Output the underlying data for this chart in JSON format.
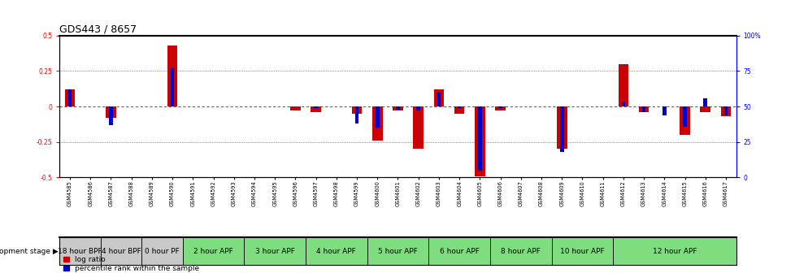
{
  "title": "GDS443 / 8657",
  "samples": [
    "GSM4585",
    "GSM4586",
    "GSM4587",
    "GSM4588",
    "GSM4589",
    "GSM4590",
    "GSM4591",
    "GSM4592",
    "GSM4593",
    "GSM4594",
    "GSM4595",
    "GSM4596",
    "GSM4597",
    "GSM4598",
    "GSM4599",
    "GSM4600",
    "GSM4601",
    "GSM4602",
    "GSM4603",
    "GSM4604",
    "GSM4605",
    "GSM4606",
    "GSM4607",
    "GSM4608",
    "GSM4609",
    "GSM4610",
    "GSM4611",
    "GSM4612",
    "GSM4613",
    "GSM4614",
    "GSM4615",
    "GSM4616",
    "GSM4617"
  ],
  "log_ratio": [
    0.12,
    0.0,
    -0.08,
    0.0,
    0.0,
    0.43,
    0.0,
    0.0,
    0.0,
    0.0,
    0.0,
    -0.03,
    -0.04,
    0.0,
    -0.05,
    -0.24,
    -0.03,
    -0.3,
    0.12,
    -0.05,
    -0.49,
    -0.03,
    0.0,
    0.0,
    -0.3,
    0.0,
    0.0,
    0.3,
    -0.04,
    0.0,
    -0.2,
    -0.04,
    -0.07
  ],
  "percentile_rank": [
    62,
    50,
    37,
    50,
    50,
    77,
    50,
    50,
    50,
    50,
    50,
    50,
    49,
    50,
    38,
    35,
    48,
    47,
    60,
    49,
    5,
    49,
    50,
    50,
    18,
    50,
    50,
    53,
    46,
    44,
    36,
    56,
    44
  ],
  "stage_groups": [
    {
      "label": "18 hour BPF",
      "start": 0,
      "end": 2,
      "color": "#c8c8c8"
    },
    {
      "label": "4 hour BPF",
      "start": 2,
      "end": 4,
      "color": "#c8c8c8"
    },
    {
      "label": "0 hour PF",
      "start": 4,
      "end": 6,
      "color": "#c8c8c8"
    },
    {
      "label": "2 hour APF",
      "start": 6,
      "end": 9,
      "color": "#7fdd7f"
    },
    {
      "label": "3 hour APF",
      "start": 9,
      "end": 12,
      "color": "#7fdd7f"
    },
    {
      "label": "4 hour APF",
      "start": 12,
      "end": 15,
      "color": "#7fdd7f"
    },
    {
      "label": "5 hour APF",
      "start": 15,
      "end": 18,
      "color": "#7fdd7f"
    },
    {
      "label": "6 hour APF",
      "start": 18,
      "end": 21,
      "color": "#7fdd7f"
    },
    {
      "label": "8 hour APF",
      "start": 21,
      "end": 24,
      "color": "#7fdd7f"
    },
    {
      "label": "10 hour APF",
      "start": 24,
      "end": 27,
      "color": "#7fdd7f"
    },
    {
      "label": "12 hour APF",
      "start": 27,
      "end": 33,
      "color": "#7fdd7f"
    }
  ],
  "ylim": [
    -0.5,
    0.5
  ],
  "yticks_left": [
    -0.5,
    -0.25,
    0.0,
    0.25,
    0.5
  ],
  "yticks_right": [
    0,
    25,
    50,
    75,
    100
  ],
  "bar_color_red": "#cc0000",
  "bar_color_blue": "#0000cc",
  "zero_line_color": "#cc0000",
  "grid_color": "#000000",
  "background_color": "#ffffff",
  "title_fontsize": 9,
  "tick_fontsize": 5.5,
  "stage_fontsize": 6.5,
  "legend_fontsize": 6.5
}
